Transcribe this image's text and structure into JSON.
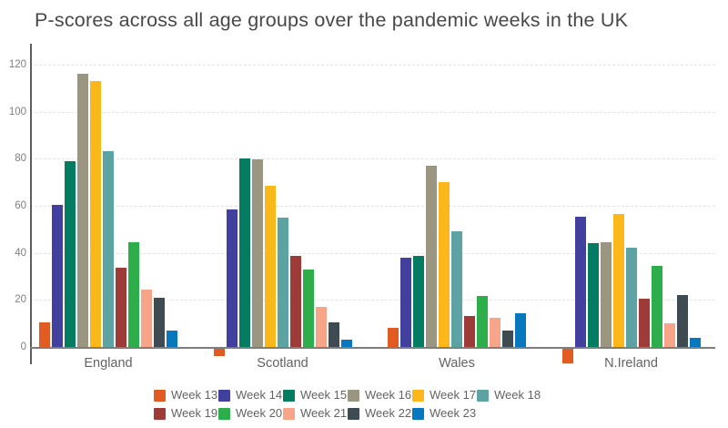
{
  "title": "P-scores across all age groups over the pandemic weeks in the UK",
  "colors": {
    "background": "#FFFFFF",
    "title_text": "#484848",
    "axis_tick_text": "#7F7F7F",
    "category_text": "#636363",
    "legend_text": "#636363",
    "gridline": "#E4E4E4",
    "axis_line": "#5D5D5D",
    "baseline": "#7D7D7D"
  },
  "chart_data": {
    "type": "bar",
    "title": "P-scores across all age groups over the pandemic weeks in the UK",
    "xlabel": "",
    "ylabel": "",
    "categories": [
      "England",
      "Scotland",
      "Wales",
      "N.Ireland"
    ],
    "series": [
      {
        "name": "Week 13",
        "color": "#E25B23",
        "values": [
          10.5,
          -3.5,
          8,
          -6.5
        ]
      },
      {
        "name": "Week 14",
        "color": "#41409E",
        "values": [
          60.5,
          58.5,
          38,
          55.5
        ]
      },
      {
        "name": "Week 15",
        "color": "#037C62",
        "values": [
          79,
          80,
          38.5,
          44
        ]
      },
      {
        "name": "Week 16",
        "color": "#9A9681",
        "values": [
          116,
          79.5,
          77,
          44.5
        ]
      },
      {
        "name": "Week 17",
        "color": "#FCB81B",
        "values": [
          113,
          68.5,
          70,
          56.5
        ]
      },
      {
        "name": "Week 18",
        "color": "#5EA3A4",
        "values": [
          83,
          55,
          49,
          42
        ]
      },
      {
        "name": "Week 19",
        "color": "#9E3B39",
        "values": [
          33.5,
          38.5,
          13,
          20.5
        ]
      },
      {
        "name": "Week 20",
        "color": "#2EAE4A",
        "values": [
          44.5,
          33,
          21.5,
          34.5
        ]
      },
      {
        "name": "Week 21",
        "color": "#F7A488",
        "values": [
          24.5,
          17,
          12.5,
          10
        ]
      },
      {
        "name": "Week 22",
        "color": "#3E4C52",
        "values": [
          21,
          10.5,
          7,
          22
        ]
      },
      {
        "name": "Week 23",
        "color": "#0878BE",
        "values": [
          7,
          3,
          14.5,
          4
        ]
      }
    ],
    "yticks": [
      0,
      20,
      40,
      60,
      80,
      100,
      120
    ],
    "ylim": [
      -10,
      120
    ],
    "grid": true,
    "grid_style": "dashed-horizontal",
    "legend_position": "bottom",
    "legend_rows": 2,
    "legend_columns": 6
  }
}
